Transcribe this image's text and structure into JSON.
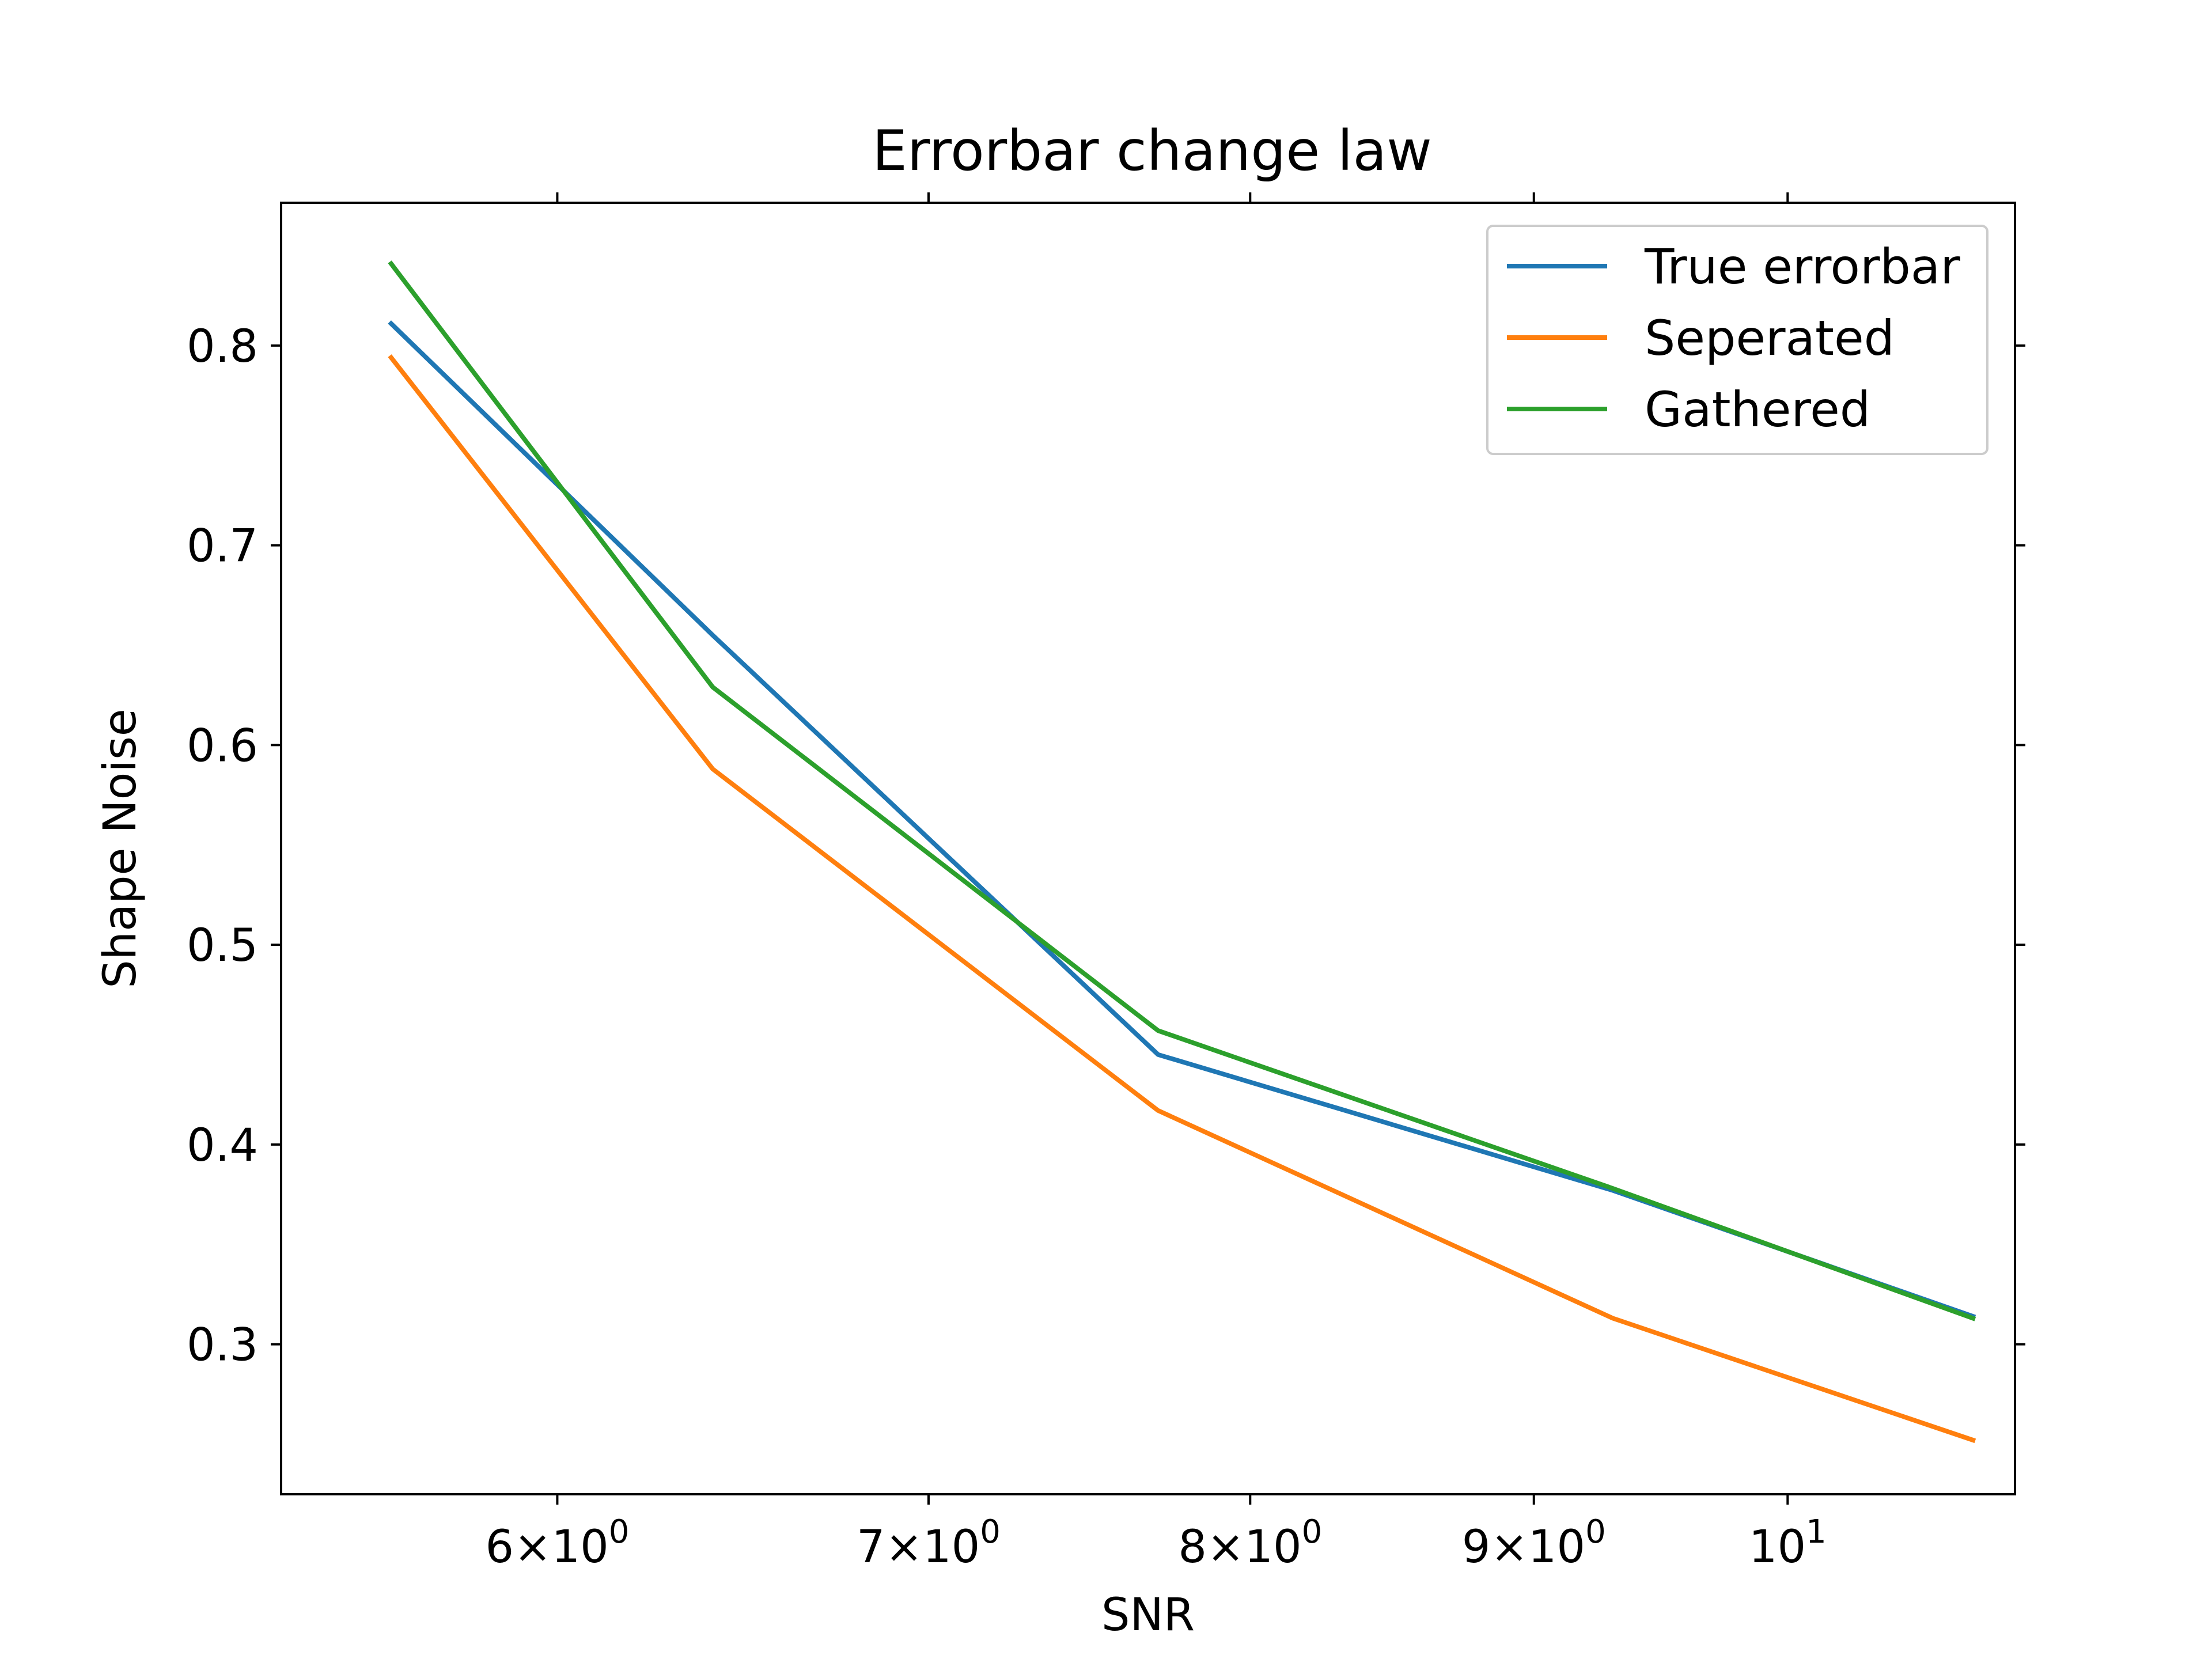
{
  "chart_data": {
    "type": "line",
    "title": "Errorbar change law",
    "xlabel": "SNR",
    "ylabel": "Shape Noise",
    "xscale": "log",
    "xlim": [
      5.35,
      10.99
    ],
    "ylim": [
      0.2249,
      0.8715
    ],
    "x_ticks": [
      {
        "value": 6,
        "mantissa": "6",
        "base": "10",
        "exp": "0"
      },
      {
        "value": 7,
        "mantissa": "7",
        "base": "10",
        "exp": "0"
      },
      {
        "value": 8,
        "mantissa": "8",
        "base": "10",
        "exp": "0"
      },
      {
        "value": 9,
        "mantissa": "9",
        "base": "10",
        "exp": "0"
      },
      {
        "value": 10,
        "mantissa": "",
        "base": "10",
        "exp": "1"
      }
    ],
    "y_ticks": [
      {
        "value": 0.3,
        "label": "0.3"
      },
      {
        "value": 0.4,
        "label": "0.4"
      },
      {
        "value": 0.5,
        "label": "0.5"
      },
      {
        "value": 0.6,
        "label": "0.6"
      },
      {
        "value": 0.7,
        "label": "0.7"
      },
      {
        "value": 0.8,
        "label": "0.8"
      }
    ],
    "x": [
      5.6,
      6.4,
      7.7,
      9.3,
      10.8
    ],
    "series": [
      {
        "name": "True errorbar",
        "color": "#1f77b4",
        "values": [
          0.811,
          0.655,
          0.445,
          0.377,
          0.314
        ]
      },
      {
        "name": "Seperated",
        "color": "#ff7f0e",
        "values": [
          0.794,
          0.588,
          0.417,
          0.313,
          0.252
        ]
      },
      {
        "name": "Gathered",
        "color": "#2ca02c",
        "values": [
          0.841,
          0.629,
          0.457,
          0.378,
          0.313
        ]
      }
    ],
    "legend_position": "top-right",
    "grid": false
  }
}
